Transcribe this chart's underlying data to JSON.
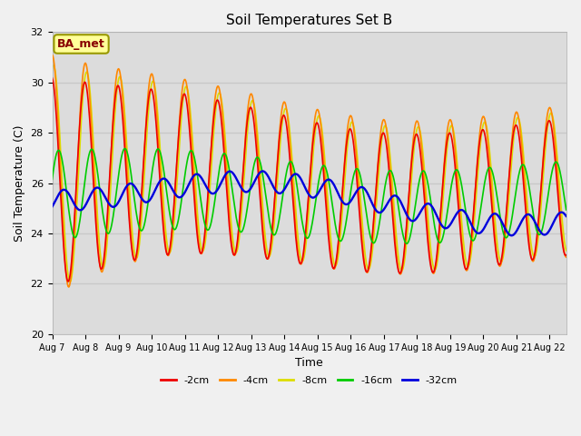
{
  "title": "Soil Temperatures Set B",
  "xlabel": "Time",
  "ylabel": "Soil Temperature (C)",
  "ylim": [
    20,
    32
  ],
  "background_color": "#f0f0f0",
  "plot_bg_color": "#dcdcdc",
  "annotation_text": "BA_met",
  "annotation_bg": "#ffff99",
  "annotation_border": "#999900",
  "annotation_fg": "#880000",
  "xtick_labels": [
    "Aug 7",
    "Aug 8",
    "Aug 9",
    "Aug 10",
    "Aug 11",
    "Aug 12",
    "Aug 13",
    "Aug 14",
    "Aug 15",
    "Aug 16",
    "Aug 17",
    "Aug 18",
    "Aug 19",
    "Aug 20",
    "Aug 21",
    "Aug 22"
  ],
  "ytick_labels": [
    20,
    22,
    24,
    26,
    28,
    30,
    32
  ],
  "legend_entries": [
    "-2cm",
    "-4cm",
    "-8cm",
    "-16cm",
    "-32cm"
  ],
  "line_colors": [
    "#ee0000",
    "#ff8800",
    "#dddd00",
    "#00cc00",
    "#0000dd"
  ],
  "grid_color": "#c8c8c8",
  "grid_linewidth": 1.0,
  "n_days": 15.5,
  "n_points": 744
}
